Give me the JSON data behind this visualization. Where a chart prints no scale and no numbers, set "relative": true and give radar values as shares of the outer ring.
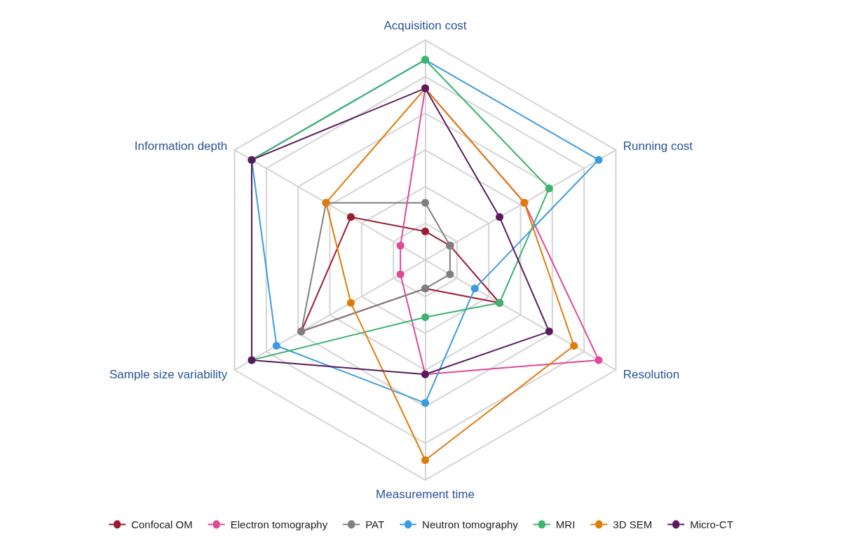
{
  "chart_data": {
    "type": "radar",
    "relative": true,
    "categories": [
      "Acquisition cost",
      "Running cost",
      "Resolution",
      "Measurement time",
      "Sample size variability",
      "Information depth"
    ],
    "series": [
      {
        "name": "Confocal OM",
        "color": "#9b1b30",
        "values": [
          0.13,
          0.13,
          0.39,
          0.13,
          0.65,
          0.39
        ]
      },
      {
        "name": "Electron tomography",
        "color": "#e0489a",
        "values": [
          0.78,
          0.52,
          0.91,
          0.52,
          0.13,
          0.13
        ]
      },
      {
        "name": "PAT",
        "color": "#7f7f7f",
        "values": [
          0.26,
          0.13,
          0.13,
          0.13,
          0.65,
          0.52
        ]
      },
      {
        "name": "Neutron tomography",
        "color": "#3c9be0",
        "values": [
          0.91,
          0.91,
          0.26,
          0.65,
          0.78,
          0.91
        ]
      },
      {
        "name": "MRI",
        "color": "#3cb46e",
        "values": [
          0.91,
          0.65,
          0.39,
          0.26,
          0.91,
          0.91
        ]
      },
      {
        "name": "3D SEM",
        "color": "#e07b0a",
        "values": [
          0.78,
          0.52,
          0.78,
          0.91,
          0.39,
          0.52
        ]
      },
      {
        "name": "Micro-CT",
        "color": "#5a1a5e",
        "values": [
          0.78,
          0.39,
          0.65,
          0.52,
          0.91,
          0.91
        ]
      }
    ],
    "grid": true,
    "legend": "bottom",
    "marker": "circle",
    "line_style": "solid"
  }
}
